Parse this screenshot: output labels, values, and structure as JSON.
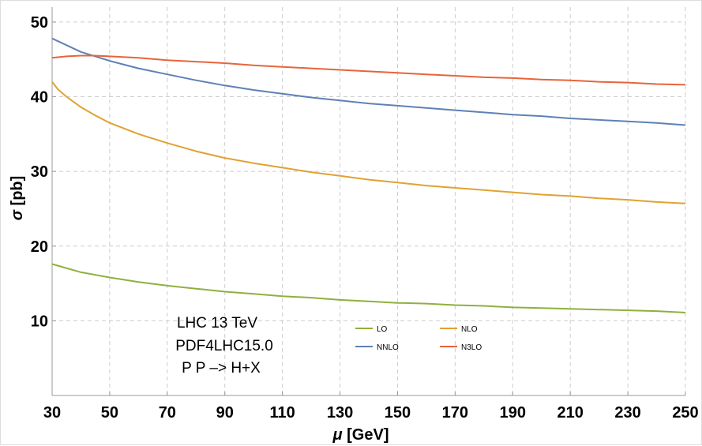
{
  "chart_data": {
    "type": "line",
    "xlabel_sym": "μ",
    "xlabel_rest": " [GeV]",
    "ylabel_sym": "σ",
    "ylabel_rest": " [pb]",
    "xlim": [
      30,
      250
    ],
    "ylim": [
      0,
      52
    ],
    "xticks": [
      30,
      50,
      70,
      90,
      110,
      130,
      150,
      170,
      190,
      210,
      230,
      250
    ],
    "yticks": [
      10,
      20,
      30,
      40,
      50
    ],
    "grid": true,
    "legend_placement": "bottom-center",
    "annotations": [
      "LHC 13 TeV",
      "PDF4LHC15.0",
      "P P –> H+X"
    ],
    "series": [
      {
        "name": "LO",
        "color": "#8fb03e",
        "x": [
          30,
          40,
          50,
          60,
          70,
          80,
          90,
          100,
          110,
          120,
          130,
          140,
          150,
          160,
          170,
          180,
          190,
          200,
          210,
          220,
          230,
          240,
          250
        ],
        "y": [
          17.6,
          16.5,
          15.8,
          15.2,
          14.7,
          14.3,
          13.9,
          13.6,
          13.3,
          13.1,
          12.8,
          12.6,
          12.4,
          12.3,
          12.1,
          12.0,
          11.8,
          11.7,
          11.6,
          11.5,
          11.4,
          11.3,
          11.1
        ]
      },
      {
        "name": "NLO",
        "color": "#e0a231",
        "x": [
          30,
          32,
          35,
          40,
          45,
          50,
          60,
          70,
          80,
          90,
          100,
          110,
          120,
          130,
          140,
          150,
          160,
          170,
          180,
          190,
          200,
          210,
          220,
          230,
          240,
          250
        ],
        "y": [
          42.0,
          41.0,
          40.0,
          38.6,
          37.5,
          36.5,
          35.0,
          33.8,
          32.7,
          31.8,
          31.1,
          30.5,
          29.9,
          29.4,
          28.9,
          28.5,
          28.1,
          27.8,
          27.5,
          27.2,
          26.9,
          26.7,
          26.4,
          26.2,
          25.9,
          25.7
        ]
      },
      {
        "name": "NNLO",
        "color": "#5e81b5",
        "x": [
          30,
          40,
          50,
          60,
          70,
          80,
          90,
          100,
          110,
          120,
          130,
          140,
          150,
          160,
          170,
          180,
          190,
          200,
          210,
          220,
          230,
          240,
          250
        ],
        "y": [
          47.8,
          46.0,
          44.8,
          43.8,
          43.0,
          42.2,
          41.5,
          40.9,
          40.4,
          39.9,
          39.5,
          39.1,
          38.8,
          38.5,
          38.2,
          37.9,
          37.6,
          37.4,
          37.1,
          36.9,
          36.7,
          36.5,
          36.2
        ]
      },
      {
        "name": "N3LO",
        "color": "#e7643a",
        "x": [
          30,
          35,
          40,
          45,
          50,
          60,
          70,
          80,
          90,
          100,
          110,
          120,
          130,
          140,
          150,
          160,
          170,
          180,
          190,
          200,
          210,
          220,
          230,
          240,
          250
        ],
        "y": [
          45.2,
          45.4,
          45.5,
          45.5,
          45.4,
          45.2,
          44.9,
          44.7,
          44.5,
          44.2,
          44.0,
          43.8,
          43.6,
          43.4,
          43.2,
          43.0,
          42.8,
          42.6,
          42.5,
          42.3,
          42.2,
          42.0,
          41.9,
          41.7,
          41.6
        ]
      }
    ]
  }
}
